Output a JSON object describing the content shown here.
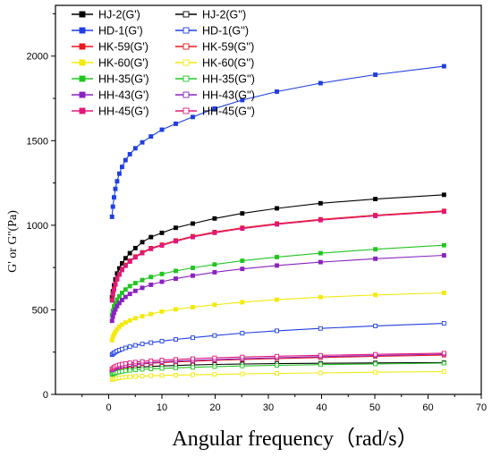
{
  "chart_data": {
    "type": "line",
    "title": "",
    "xlabel": "Angular frequency（rad/s）",
    "ylabel": "G' or G''(Pa)",
    "xlim": [
      -10,
      70
    ],
    "ylim": [
      0,
      2300
    ],
    "xticks": [
      0,
      10,
      20,
      30,
      40,
      50,
      60,
      70
    ],
    "yticks": [
      0,
      500,
      1000,
      1500,
      2000
    ],
    "x_tick_labels": [
      "0",
      "10",
      "20",
      "30",
      "40",
      "50",
      "60",
      "70"
    ],
    "y_tick_labels": [
      "0",
      "500",
      "1000",
      "1500",
      "2000"
    ],
    "grid": false,
    "legend_position": "top-left",
    "x": [
      0.63,
      0.79,
      1.0,
      1.26,
      1.58,
      2.0,
      2.51,
      3.16,
      3.98,
      5.01,
      6.31,
      7.94,
      10.0,
      12.6,
      15.8,
      19.9,
      25.1,
      31.6,
      39.8,
      50.1,
      63.0
    ],
    "series": [
      {
        "name": "HJ-2(G')",
        "color": "#000000",
        "marker": "filled-square",
        "values": [
          575,
          610,
          645,
          680,
          715,
          745,
          775,
          805,
          835,
          865,
          900,
          930,
          955,
          985,
          1010,
          1040,
          1070,
          1100,
          1130,
          1155,
          1180
        ]
      },
      {
        "name": "HJ-2(G'')",
        "color": "#000000",
        "marker": "open-square",
        "values": [
          130,
          135,
          138,
          141,
          144,
          147,
          150,
          153,
          156,
          159,
          162,
          165,
          168,
          171,
          174,
          177,
          180,
          182,
          184,
          186,
          188
        ]
      },
      {
        "name": "HD-1(G')",
        "color": "#1f3fe0",
        "marker": "filled-square",
        "values": [
          1050,
          1110,
          1165,
          1215,
          1260,
          1305,
          1345,
          1385,
          1420,
          1455,
          1490,
          1525,
          1565,
          1600,
          1640,
          1690,
          1740,
          1790,
          1840,
          1890,
          1940
        ]
      },
      {
        "name": "HD-1(G'')",
        "color": "#1f3fe0",
        "marker": "open-square",
        "values": [
          235,
          240,
          245,
          250,
          256,
          262,
          268,
          275,
          282,
          290,
          298,
          306,
          315,
          325,
          335,
          348,
          362,
          376,
          390,
          405,
          420
        ]
      },
      {
        "name": "HK-59(G')",
        "color": "#e8191f",
        "marker": "filled-square",
        "values": [
          560,
          595,
          625,
          655,
          685,
          710,
          740,
          765,
          790,
          815,
          840,
          865,
          885,
          910,
          935,
          960,
          985,
          1010,
          1035,
          1060,
          1085
        ]
      },
      {
        "name": "HK-59(G'')",
        "color": "#e8191f",
        "marker": "open-square",
        "values": [
          140,
          144,
          148,
          152,
          156,
          160,
          164,
          168,
          172,
          176,
          180,
          184,
          188,
          192,
          196,
          201,
          206,
          212,
          218,
          225,
          232
        ]
      },
      {
        "name": "HK-60(G')",
        "color": "#f2ea0e",
        "marker": "filled-square",
        "values": [
          320,
          340,
          355,
          370,
          385,
          400,
          412,
          425,
          437,
          450,
          462,
          475,
          490,
          503,
          516,
          530,
          545,
          560,
          575,
          588,
          600
        ]
      },
      {
        "name": "HK-60(G'')",
        "color": "#f2ea0e",
        "marker": "open-square",
        "values": [
          88,
          90,
          92,
          94,
          96,
          98,
          100,
          102,
          104,
          106,
          108,
          110,
          112,
          114,
          116,
          118,
          121,
          124,
          127,
          131,
          135
        ]
      },
      {
        "name": "HH-35(G')",
        "color": "#22c522",
        "marker": "filled-square",
        "values": [
          470,
          495,
          520,
          540,
          560,
          580,
          600,
          620,
          640,
          658,
          676,
          694,
          712,
          730,
          748,
          768,
          790,
          812,
          835,
          858,
          882
        ]
      },
      {
        "name": "HH-35(G'')",
        "color": "#22c522",
        "marker": "open-square",
        "values": [
          118,
          121,
          124,
          127,
          130,
          133,
          136,
          139,
          142,
          145,
          148,
          151,
          154,
          157,
          160,
          164,
          168,
          172,
          176,
          180,
          185
        ]
      },
      {
        "name": "HH-43(G')",
        "color": "#8a22c0",
        "marker": "filled-square",
        "values": [
          435,
          460,
          482,
          502,
          522,
          540,
          558,
          576,
          594,
          612,
          630,
          648,
          666,
          684,
          702,
          722,
          742,
          762,
          782,
          802,
          822
        ]
      },
      {
        "name": "HH-43(G'')",
        "color": "#8a22c0",
        "marker": "open-square",
        "values": [
          145,
          149,
          153,
          157,
          161,
          165,
          169,
          173,
          177,
          181,
          185,
          189,
          193,
          197,
          201,
          206,
          211,
          217,
          223,
          230,
          238
        ]
      },
      {
        "name": "HH-45(G')",
        "color": "#e0187a",
        "marker": "filled-square",
        "values": [
          555,
          590,
          620,
          650,
          680,
          708,
          735,
          760,
          785,
          810,
          835,
          860,
          880,
          905,
          930,
          955,
          980,
          1005,
          1030,
          1055,
          1080
        ]
      },
      {
        "name": "HH-45(G'')",
        "color": "#e0187a",
        "marker": "open-square",
        "values": [
          150,
          155,
          160,
          165,
          170,
          175,
          179,
          183,
          187,
          191,
          195,
          199,
          203,
          207,
          211,
          216,
          221,
          226,
          231,
          237,
          244
        ]
      }
    ]
  }
}
